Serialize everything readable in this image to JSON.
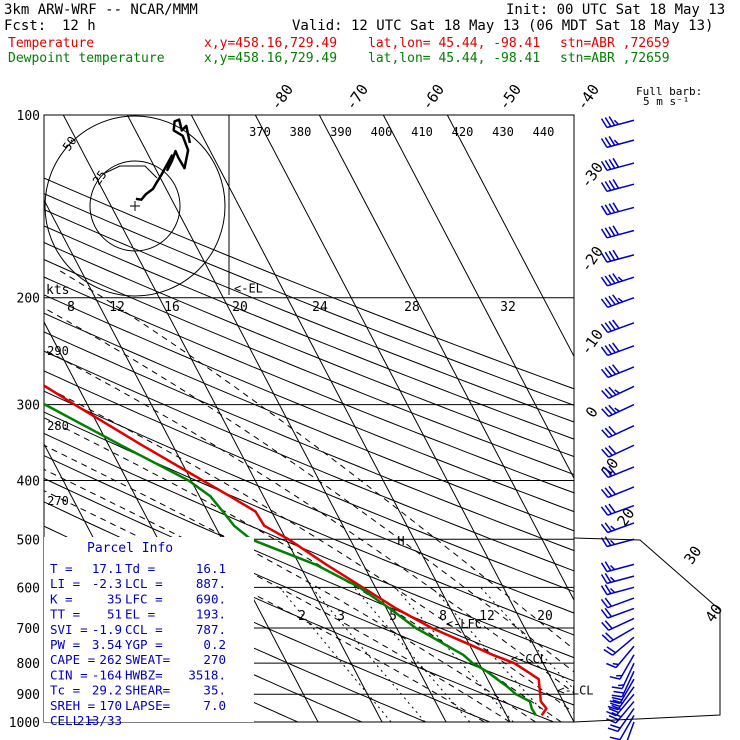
{
  "header": {
    "model": "3km ARW-WRF -- NCAR/MMM",
    "init": "Init: 00 UTC Sat 18 May 13",
    "fcst_label": "Fcst:",
    "fcst_value": "12 h",
    "valid": "Valid: 12 UTC Sat 18 May 13 (06 MDT Sat 18 May 13)",
    "temp_line": {
      "name": "Temperature",
      "xy": "x,y=458.16,729.49",
      "latlon": "lat,lon= 45.44, -98.41",
      "stn": "stn=ABR ,72659"
    },
    "dew_line": {
      "name": "Dewpoint temperature",
      "xy": "x,y=458.16,729.49",
      "latlon": "lat,lon= 45.44, -98.41",
      "stn": "stn=ABR ,72659"
    }
  },
  "colors": {
    "temperature": "#e00000",
    "dewpoint": "#008000",
    "grid": "#000000",
    "wind": "#0000c0"
  },
  "barb_legend": {
    "line1": "Full barb:",
    "line2": "5 m s⁻¹"
  },
  "hodograph": {
    "kts_label": "kts",
    "ring_labels": [
      "25",
      "50"
    ]
  },
  "parcel_info": {
    "title": "Parcel Info",
    "rows": [
      [
        "T  =",
        "17.1",
        "Td =",
        "16.1"
      ],
      [
        "LI =",
        "-2.3",
        "LCL =",
        "887."
      ],
      [
        "K  =",
        "35",
        "LFC =",
        "690."
      ],
      [
        "TT =",
        "51",
        "EL  =",
        "193."
      ],
      [
        "SVI =",
        "-1.9",
        "CCL =",
        "787."
      ],
      [
        "PW =",
        "3.54",
        "YGP =",
        "0.2"
      ],
      [
        "CAPE =",
        "262",
        "SWEAT=",
        "270"
      ],
      [
        "CIN =",
        "-164",
        "HWBZ=",
        "3518."
      ],
      [
        "Tc =",
        "29.2",
        "SHEAR=",
        "35."
      ],
      [
        "SREH =",
        "170",
        "LAPSE=",
        "7.0"
      ],
      [
        "CELL =",
        "213/33",
        "",
        ""
      ]
    ]
  },
  "chart_data": {
    "type": "line",
    "title": "Skew-T log-P sounding",
    "y_axis": {
      "label": "Pressure (hPa)",
      "scale": "log",
      "reversed": true,
      "ticks": [
        100,
        200,
        300,
        400,
        500,
        600,
        700,
        800,
        900,
        1000
      ],
      "range": [
        100,
        1000
      ]
    },
    "isotherm_labels_c": [
      -80,
      -70,
      -60,
      -50,
      -40,
      -30,
      -20,
      -10,
      0,
      10,
      20,
      30,
      40
    ],
    "theta_labels_k": [
      370,
      380,
      390,
      400,
      410,
      420,
      430,
      440
    ],
    "theta_left_labels_k": [
      290,
      280,
      270
    ],
    "mixing_ratio_labels": [
      "2",
      "3",
      "5",
      "8",
      "12",
      "20"
    ],
    "hodo_speed_labels": [
      "8",
      "12",
      "16",
      "20",
      "24",
      "28",
      "32"
    ],
    "level_markers": [
      {
        "label": "<-EL",
        "p": 193
      },
      {
        "label": "<-LFC",
        "p": 690
      },
      {
        "label": "<-CCL",
        "p": 787
      },
      {
        "label": "<-LCL",
        "p": 887
      }
    ],
    "freezing_marker": {
      "label": "H",
      "p": 503
    },
    "series": [
      {
        "name": "Temperature",
        "unit": "C",
        "points": [
          [
            975,
            15.5
          ],
          [
            950,
            16.8
          ],
          [
            925,
            16.5
          ],
          [
            900,
            17.0
          ],
          [
            875,
            17.5
          ],
          [
            850,
            18.0
          ],
          [
            825,
            16.8
          ],
          [
            800,
            15.5
          ],
          [
            775,
            12.8
          ],
          [
            750,
            10.5
          ],
          [
            725,
            8.0
          ],
          [
            700,
            5.5
          ],
          [
            650,
            1.5
          ],
          [
            600,
            -2.0
          ],
          [
            550,
            -5.8
          ],
          [
            500,
            -9.6
          ],
          [
            475,
            -12.3
          ],
          [
            450,
            -12.5
          ],
          [
            425,
            -15.2
          ],
          [
            400,
            -18.2
          ],
          [
            350,
            -24.8
          ],
          [
            300,
            -32.0
          ],
          [
            250,
            -40.2
          ],
          [
            225,
            -45.0
          ],
          [
            200,
            -53.5
          ],
          [
            188,
            -57.0
          ],
          [
            170,
            -56.0
          ],
          [
            150,
            -58.5
          ],
          [
            140,
            -59.8
          ],
          [
            125,
            -63.5
          ],
          [
            112,
            -68.0
          ],
          [
            100,
            -71.5
          ]
        ]
      },
      {
        "name": "Dewpoint temperature",
        "unit": "C",
        "points": [
          [
            975,
            14.6
          ],
          [
            950,
            14.5
          ],
          [
            925,
            14.8
          ],
          [
            900,
            13.2
          ],
          [
            875,
            12.5
          ],
          [
            850,
            11.5
          ],
          [
            825,
            10.5
          ],
          [
            800,
            9.0
          ],
          [
            775,
            8.2
          ],
          [
            750,
            6.5
          ],
          [
            725,
            4.8
          ],
          [
            700,
            3.0
          ],
          [
            650,
            0.5
          ],
          [
            600,
            -2.5
          ],
          [
            550,
            -7.5
          ],
          [
            500,
            -15.5
          ],
          [
            475,
            -17.0
          ],
          [
            450,
            -17.6
          ],
          [
            425,
            -18.3
          ],
          [
            400,
            -20.4
          ],
          [
            350,
            -28.1
          ],
          [
            300,
            -36.6
          ],
          [
            250,
            -46.8
          ],
          [
            225,
            -54.9
          ],
          [
            200,
            -62.5
          ],
          [
            188,
            -64.2
          ],
          [
            170,
            -61.7
          ],
          [
            150,
            -61.7
          ],
          [
            140,
            -60.9
          ],
          [
            125,
            -60.9
          ],
          [
            112,
            -62.4
          ],
          [
            100,
            -62.9
          ]
        ]
      }
    ],
    "wind_barbs": [
      {
        "p": 1000,
        "dir": 200,
        "spd_ms": 4
      },
      {
        "p": 975,
        "dir": 210,
        "spd_ms": 6
      },
      {
        "p": 950,
        "dir": 215,
        "spd_ms": 10
      },
      {
        "p": 925,
        "dir": 220,
        "spd_ms": 14
      },
      {
        "p": 900,
        "dir": 220,
        "spd_ms": 16
      },
      {
        "p": 875,
        "dir": 215,
        "spd_ms": 14
      },
      {
        "p": 850,
        "dir": 210,
        "spd_ms": 10
      },
      {
        "p": 825,
        "dir": 205,
        "spd_ms": 9
      },
      {
        "p": 800,
        "dir": 205,
        "spd_ms": 8
      },
      {
        "p": 775,
        "dir": 210,
        "spd_ms": 8
      },
      {
        "p": 750,
        "dir": 220,
        "spd_ms": 8
      },
      {
        "p": 725,
        "dir": 230,
        "spd_ms": 9
      },
      {
        "p": 700,
        "dir": 240,
        "spd_ms": 10
      },
      {
        "p": 675,
        "dir": 245,
        "spd_ms": 10
      },
      {
        "p": 650,
        "dir": 250,
        "spd_ms": 11
      },
      {
        "p": 625,
        "dir": 250,
        "spd_ms": 11
      },
      {
        "p": 600,
        "dir": 255,
        "spd_ms": 12
      },
      {
        "p": 575,
        "dir": 255,
        "spd_ms": 12
      },
      {
        "p": 550,
        "dir": 255,
        "spd_ms": 12
      },
      {
        "p": 500,
        "dir": 255,
        "spd_ms": 13
      },
      {
        "p": 470,
        "dir": 250,
        "spd_ms": 13
      },
      {
        "p": 440,
        "dir": 250,
        "spd_ms": 14
      },
      {
        "p": 410,
        "dir": 248,
        "spd_ms": 14
      },
      {
        "p": 380,
        "dir": 248,
        "spd_ms": 15
      },
      {
        "p": 350,
        "dir": 245,
        "spd_ms": 16
      },
      {
        "p": 325,
        "dir": 245,
        "spd_ms": 16
      },
      {
        "p": 300,
        "dir": 245,
        "spd_ms": 17
      },
      {
        "p": 280,
        "dir": 245,
        "spd_ms": 18
      },
      {
        "p": 260,
        "dir": 248,
        "spd_ms": 19
      },
      {
        "p": 240,
        "dir": 250,
        "spd_ms": 20
      },
      {
        "p": 220,
        "dir": 250,
        "spd_ms": 21
      },
      {
        "p": 200,
        "dir": 250,
        "spd_ms": 22
      },
      {
        "p": 185,
        "dir": 252,
        "spd_ms": 22
      },
      {
        "p": 170,
        "dir": 255,
        "spd_ms": 21
      },
      {
        "p": 155,
        "dir": 255,
        "spd_ms": 20
      },
      {
        "p": 142,
        "dir": 255,
        "spd_ms": 20
      },
      {
        "p": 130,
        "dir": 255,
        "spd_ms": 19
      },
      {
        "p": 120,
        "dir": 255,
        "spd_ms": 19
      },
      {
        "p": 110,
        "dir": 255,
        "spd_ms": 18
      },
      {
        "p": 102,
        "dir": 255,
        "spd_ms": 17
      }
    ],
    "hodograph_trace_uv_kts": [
      [
        0.5,
        4.0
      ],
      [
        3.5,
        3.5
      ],
      [
        6.0,
        6.5
      ],
      [
        10.0,
        9.5
      ],
      [
        12.0,
        13.0
      ],
      [
        14.5,
        17.0
      ],
      [
        17.5,
        22.5
      ],
      [
        20.5,
        28.0
      ],
      [
        18.0,
        20.0
      ],
      [
        20.5,
        25.0
      ],
      [
        22.5,
        30.5
      ],
      [
        24.0,
        27.0
      ],
      [
        27.5,
        21.0
      ],
      [
        29.5,
        31.0
      ],
      [
        26.5,
        39.0
      ],
      [
        21.5,
        42.0
      ],
      [
        22.0,
        47.0
      ],
      [
        24.5,
        48.0
      ],
      [
        26.0,
        42.0
      ],
      [
        28.5,
        44.5
      ],
      [
        30.5,
        35.0
      ]
    ]
  }
}
